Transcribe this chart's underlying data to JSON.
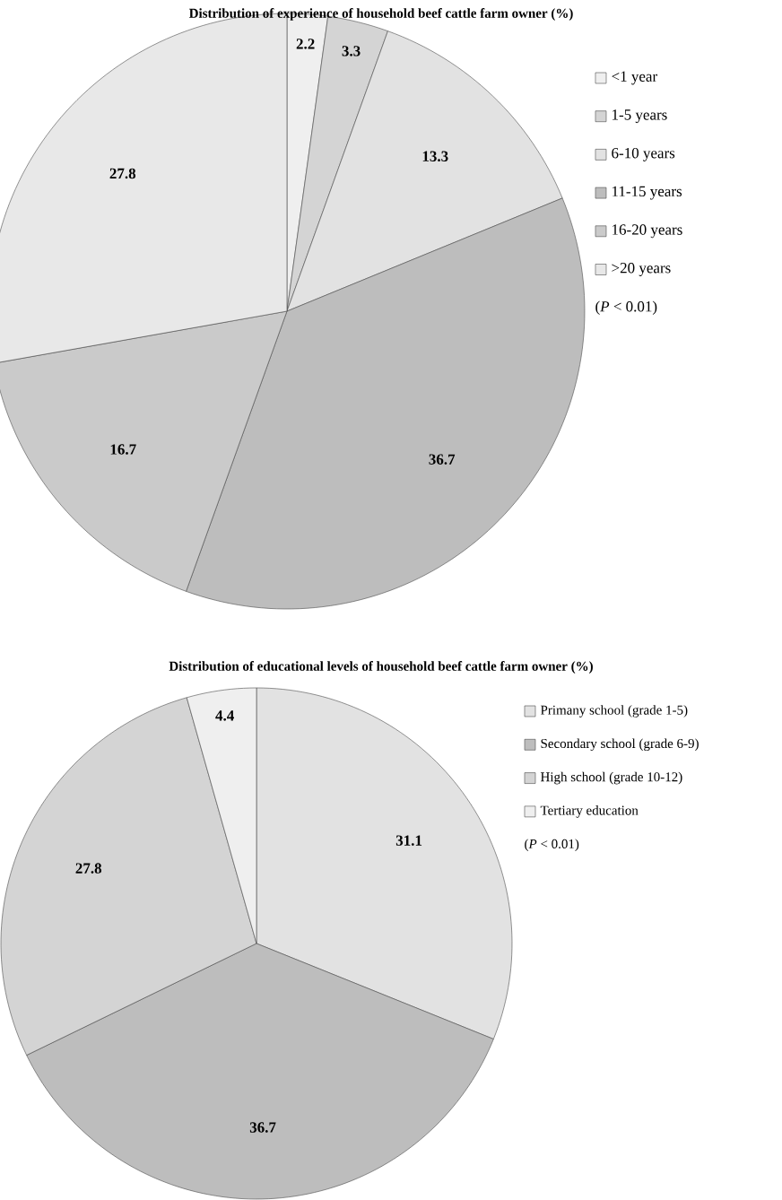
{
  "chart_data": [
    {
      "type": "pie",
      "title": "Distribution of experience of household beef cattle farm owner (%)",
      "categories": [
        "<1 year",
        "1-5 years",
        "6-10 years",
        "11-15 years",
        "16-20 years",
        ">20 years"
      ],
      "values": [
        2.2,
        3.3,
        13.3,
        36.7,
        16.7,
        27.8
      ],
      "colors": [
        "#efefef",
        "#d4d4d4",
        "#e2e2e2",
        "#bdbdbd",
        "#cacaca",
        "#e8e8e8"
      ],
      "data_labels": true,
      "legend": "right",
      "annotations": [
        "(*P* < 0.01)"
      ]
    },
    {
      "type": "pie",
      "title": "Distribution of educational levels of household beef cattle farm owner (%)",
      "categories": [
        "Primany school (grade 1-5)",
        "Secondary school (grade 6-9)",
        "High school (grade 10-12)",
        "Tertiary education"
      ],
      "values": [
        31.1,
        36.7,
        27.8,
        4.4
      ],
      "colors": [
        "#e2e2e2",
        "#bdbdbd",
        "#d4d4d4",
        "#efefef"
      ],
      "data_labels": true,
      "legend": "right",
      "annotations": [
        "(*P* < 0.01)"
      ]
    }
  ]
}
